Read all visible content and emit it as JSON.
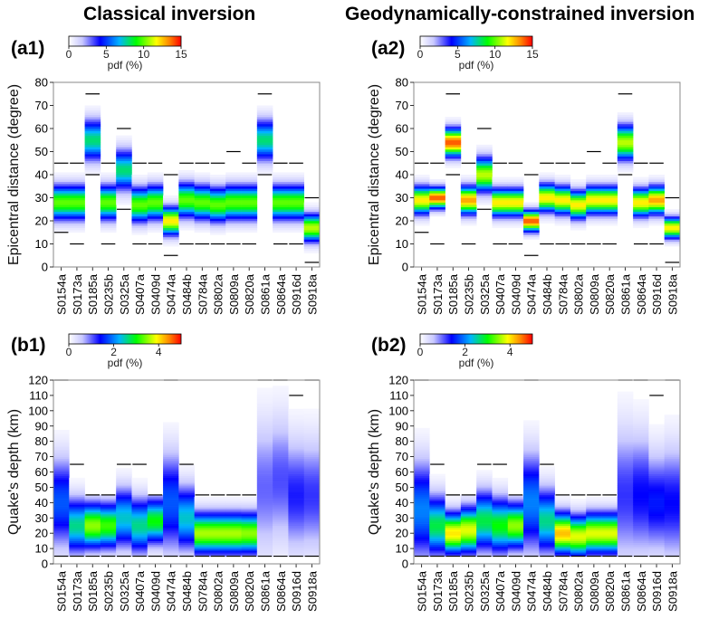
{
  "headings": {
    "left": "Classical inversion",
    "right": "Geodynamically-constrained inversion"
  },
  "colorbars": {
    "top": {
      "ticks": [
        "0",
        "5",
        "10",
        "15"
      ],
      "max": 15,
      "label": "pdf (%)"
    },
    "bottom": {
      "ticks": [
        "0",
        "2",
        "4"
      ],
      "max": 5,
      "label": "pdf (%)"
    }
  },
  "chart_data": [
    {
      "type": "heatmap",
      "panel": "(a1)",
      "ylabel": "Epicentral distance (degree)",
      "ylim": [
        0,
        80
      ],
      "yticks": [
        0,
        10,
        20,
        30,
        40,
        50,
        60,
        70,
        80
      ],
      "categories": [
        "S0154a",
        "S0173a",
        "S0185a",
        "S0235b",
        "S0325a",
        "S0407a",
        "S0409d",
        "S0474a",
        "S0484b",
        "S0784a",
        "S0802a",
        "S0809a",
        "S0820a",
        "S0861a",
        "S0864a",
        "S0916d",
        "S0918a"
      ],
      "prior_bounds": [
        [
          15,
          45
        ],
        [
          10,
          45
        ],
        [
          40,
          75
        ],
        [
          10,
          45
        ],
        [
          25,
          60
        ],
        [
          10,
          45
        ],
        [
          10,
          45
        ],
        [
          5,
          40
        ],
        [
          10,
          45
        ],
        [
          10,
          45
        ],
        [
          10,
          45
        ],
        [
          10,
          50
        ],
        [
          10,
          45
        ],
        [
          40,
          75
        ],
        [
          10,
          45
        ],
        [
          10,
          45
        ],
        [
          2,
          30
        ]
      ],
      "peak": [
        28,
        28,
        55,
        28,
        42,
        27,
        28,
        20,
        29,
        28,
        27,
        28,
        28,
        55,
        28,
        28,
        17
      ],
      "spread": [
        5,
        5,
        6,
        5,
        6,
        5,
        5,
        4,
        5,
        5,
        5,
        5,
        5,
        6,
        5,
        5,
        4
      ],
      "peak_pdf": [
        10,
        10,
        8,
        10,
        8,
        10,
        10,
        12,
        10,
        10,
        10,
        10,
        10,
        8,
        10,
        10,
        11
      ]
    },
    {
      "type": "heatmap",
      "panel": "(a2)",
      "ylabel": "Epicentral distance (degree)",
      "ylim": [
        0,
        80
      ],
      "yticks": [
        0,
        10,
        20,
        30,
        40,
        50,
        60,
        70,
        80
      ],
      "categories": [
        "S0154a",
        "S0173a",
        "S0185a",
        "S0235b",
        "S0325a",
        "S0407a",
        "S0409d",
        "S0474a",
        "S0484b",
        "S0784a",
        "S0802a",
        "S0809a",
        "S0820a",
        "S0861a",
        "S0864a",
        "S0916d",
        "S0918a"
      ],
      "prior_bounds": [
        [
          15,
          45
        ],
        [
          10,
          45
        ],
        [
          40,
          75
        ],
        [
          10,
          45
        ],
        [
          25,
          60
        ],
        [
          10,
          45
        ],
        [
          10,
          45
        ],
        [
          5,
          40
        ],
        [
          10,
          45
        ],
        [
          10,
          45
        ],
        [
          10,
          45
        ],
        [
          10,
          50
        ],
        [
          10,
          45
        ],
        [
          40,
          75
        ],
        [
          10,
          45
        ],
        [
          10,
          45
        ],
        [
          2,
          30
        ]
      ],
      "peak": [
        29,
        30,
        54,
        29,
        40,
        28,
        28,
        20,
        30,
        29,
        27,
        29,
        29,
        54,
        28,
        29,
        17
      ],
      "spread": [
        4,
        3,
        4,
        4,
        5,
        4,
        4,
        3,
        4,
        4,
        4,
        4,
        4,
        5,
        4,
        4,
        3
      ],
      "peak_pdf": [
        12,
        14,
        14,
        13,
        11,
        12,
        12,
        14,
        12,
        12,
        12,
        12,
        12,
        11,
        12,
        13,
        12
      ]
    },
    {
      "type": "heatmap",
      "panel": "(b1)",
      "ylabel": "Quake's depth (km)",
      "ylim": [
        0,
        120
      ],
      "yticks": [
        0,
        10,
        20,
        30,
        40,
        50,
        60,
        70,
        80,
        90,
        100,
        110,
        120
      ],
      "categories": [
        "S0154a",
        "S0173a",
        "S0185a",
        "S0235b",
        "S0325a",
        "S0407a",
        "S0409d",
        "S0474a",
        "S0484b",
        "S0784a",
        "S0802a",
        "S0809a",
        "S0820a",
        "S0861a",
        "S0864a",
        "S0916d",
        "S0918a"
      ],
      "prior_bounds": [
        [
          5,
          120
        ],
        [
          5,
          65
        ],
        [
          5,
          45
        ],
        [
          5,
          45
        ],
        [
          5,
          65
        ],
        [
          5,
          65
        ],
        [
          5,
          45
        ],
        [
          5,
          120
        ],
        [
          5,
          65
        ],
        [
          5,
          45
        ],
        [
          5,
          45
        ],
        [
          5,
          45
        ],
        [
          5,
          45
        ],
        [
          5,
          120
        ],
        [
          5,
          120
        ],
        [
          5,
          110
        ],
        [
          5,
          120
        ]
      ],
      "peak": [
        40,
        25,
        25,
        25,
        30,
        25,
        28,
        40,
        30,
        20,
        20,
        20,
        20,
        50,
        55,
        45,
        45
      ],
      "spread": [
        20,
        12,
        10,
        10,
        13,
        12,
        10,
        22,
        14,
        9,
        9,
        9,
        9,
        30,
        28,
        25,
        25
      ],
      "peak_pdf": [
        1.8,
        2.6,
        3.5,
        3.2,
        2.4,
        2.6,
        3.0,
        1.8,
        2.4,
        3.6,
        3.6,
        3.6,
        3.5,
        1.0,
        1.1,
        1.3,
        1.2
      ]
    },
    {
      "type": "heatmap",
      "panel": "(b2)",
      "ylabel": "Quake's depth (km)",
      "ylim": [
        0,
        120
      ],
      "yticks": [
        0,
        10,
        20,
        30,
        40,
        50,
        60,
        70,
        80,
        90,
        100,
        110,
        120
      ],
      "categories": [
        "S0154a",
        "S0173a",
        "S0185a",
        "S0235b",
        "S0325a",
        "S0407a",
        "S0409d",
        "S0474a",
        "S0484b",
        "S0784a",
        "S0802a",
        "S0809a",
        "S0820a",
        "S0861a",
        "S0864a",
        "S0916d",
        "S0918a"
      ],
      "prior_bounds": [
        [
          5,
          120
        ],
        [
          5,
          65
        ],
        [
          5,
          45
        ],
        [
          5,
          45
        ],
        [
          5,
          65
        ],
        [
          5,
          65
        ],
        [
          5,
          45
        ],
        [
          5,
          120
        ],
        [
          5,
          65
        ],
        [
          5,
          45
        ],
        [
          5,
          45
        ],
        [
          5,
          45
        ],
        [
          5,
          45
        ],
        [
          5,
          120
        ],
        [
          5,
          120
        ],
        [
          5,
          110
        ],
        [
          5,
          120
        ]
      ],
      "peak": [
        35,
        25,
        20,
        22,
        28,
        25,
        25,
        40,
        28,
        20,
        18,
        20,
        20,
        45,
        45,
        40,
        40
      ],
      "spread": [
        22,
        13,
        9,
        10,
        13,
        12,
        10,
        22,
        14,
        9,
        9,
        9,
        9,
        30,
        27,
        22,
        25
      ],
      "peak_pdf": [
        2.0,
        2.8,
        4.0,
        3.8,
        2.8,
        3.0,
        3.5,
        2.0,
        2.6,
        4.2,
        3.8,
        3.8,
        3.8,
        1.2,
        1.4,
        1.5,
        1.4
      ]
    }
  ]
}
